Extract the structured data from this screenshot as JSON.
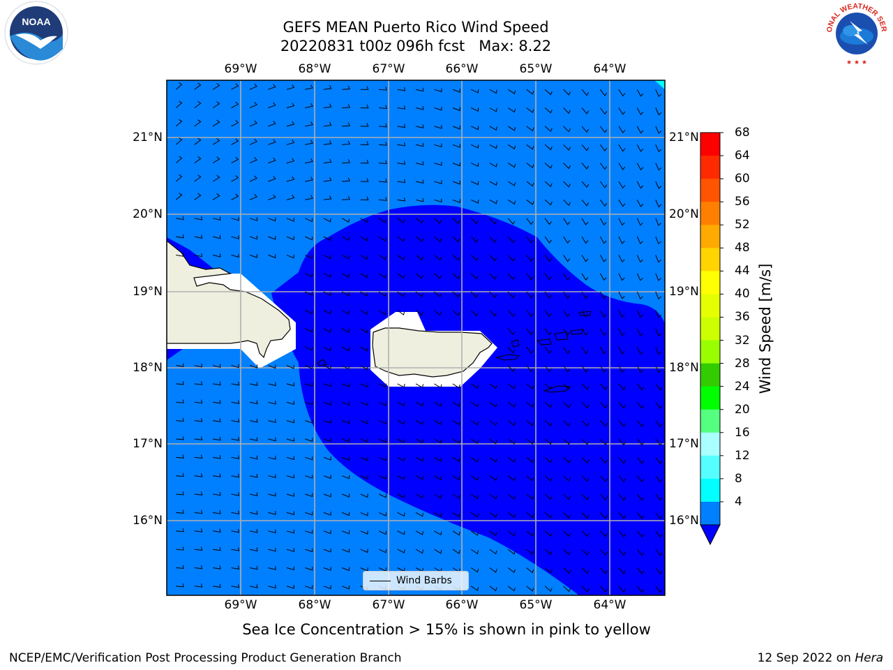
{
  "title_line1": "GEFS MEAN Puerto Rico Wind Speed",
  "title_line2": "20220831 t00z 096h fcst   Max: 8.22",
  "lon_ticks": [
    "69°W",
    "68°W",
    "67°W",
    "66°W",
    "65°W",
    "64°W"
  ],
  "lat_ticks": [
    "21°N",
    "20°N",
    "19°N",
    "18°N",
    "17°N",
    "16°N"
  ],
  "colorbar": {
    "label": "Wind Speed [m/s]",
    "ticks": [
      "68",
      "64",
      "60",
      "56",
      "52",
      "48",
      "44",
      "40",
      "36",
      "32",
      "28",
      "24",
      "20",
      "16",
      "12",
      "8",
      "4"
    ],
    "colors": [
      "#ff0000",
      "#ff2a00",
      "#ff5500",
      "#ff8000",
      "#ffaa00",
      "#ffd400",
      "#ffff00",
      "#e6ff00",
      "#ccff00",
      "#99ff00",
      "#33cc00",
      "#00ff00",
      "#55ff7f",
      "#aaffff",
      "#55ffff",
      "#00ffff",
      "#0080ff"
    ],
    "under_color": "#0000ff"
  },
  "map_colors": {
    "light_band": "#0080ff",
    "dark_band": "#0000ff",
    "land": "#efefdf",
    "cyan_corner": "#00ffff"
  },
  "legend_label": "Wind Barbs",
  "caption": "Sea Ice Concentration > 15% is shown in pink to yellow",
  "footer_left": "NCEP/EMC/Verification Post Processing Product Generation Branch",
  "footer_date": "12 Sep 2022 on ",
  "footer_machine": "Hera",
  "logo_noaa_text": "NOAA",
  "logo_nws_text": "NATIONAL WEATHER SERVICE",
  "icons": {
    "noaa_logo": "noaa-logo-icon",
    "nws_logo": "nws-logo-icon"
  }
}
